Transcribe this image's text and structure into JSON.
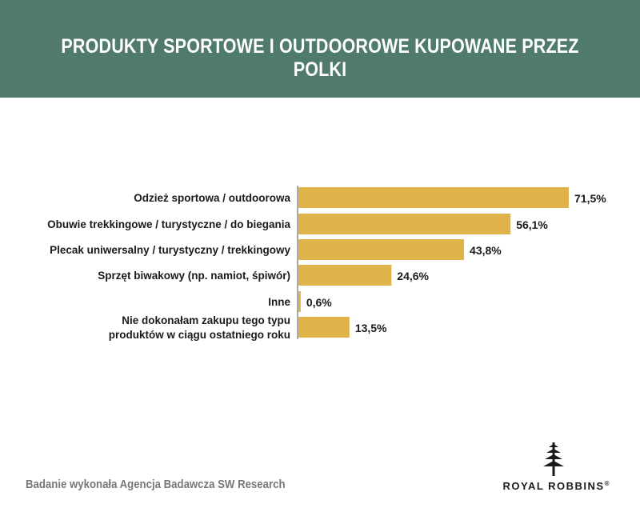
{
  "header": {
    "title": "PRODUKTY SPORTOWE I OUTDOOROWE KUPOWANE PRZEZ POLKI"
  },
  "footer": {
    "source": "Badanie wykonała Agencja Badawcza SW Research"
  },
  "logo": {
    "name": "ROYAL ROBBINS",
    "mark": "®",
    "icon": "tree-icon"
  },
  "colors": {
    "header_bg": "#4f7a6c",
    "bar": "#e0b24a",
    "axis": "#555555"
  },
  "chart_data": {
    "type": "bar",
    "orientation": "horizontal",
    "title": "",
    "xlabel": "",
    "ylabel": "",
    "categories": [
      [
        "Odzież sportowa / outdoorowa"
      ],
      [
        "Obuwie trekkingowe / turystyczne / do biegania"
      ],
      [
        "Plecak uniwersalny / turystyczny / trekkingowy"
      ],
      [
        "Sprzęt biwakowy (np. namiot, śpiwór)"
      ],
      [
        "Inne"
      ],
      [
        "Nie dokonałam zakupu tego typu",
        "produktów w ciągu ostatniego roku"
      ]
    ],
    "values": [
      71.5,
      56.1,
      43.8,
      24.6,
      0.6,
      13.5
    ],
    "value_labels": [
      "71,5%",
      "56,1%",
      "43,8%",
      "24,6%",
      "0,6%",
      "13,5%"
    ],
    "xlim": [
      0,
      71.5
    ],
    "grid": false,
    "legend": "none"
  }
}
